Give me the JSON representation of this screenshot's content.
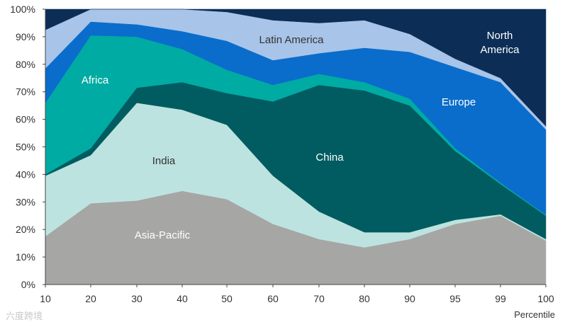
{
  "chart_data": {
    "type": "area",
    "stacked": true,
    "x": [
      10,
      20,
      30,
      40,
      50,
      60,
      70,
      80,
      90,
      95,
      99,
      100
    ],
    "xtick_labels": [
      "10",
      "20",
      "30",
      "40",
      "50",
      "60",
      "70",
      "80",
      "90",
      "95",
      "99",
      "100"
    ],
    "xlabel": "Percentile",
    "ylabel": "",
    "ylim": [
      0,
      100
    ],
    "yticks": [
      0,
      10,
      20,
      30,
      40,
      50,
      60,
      70,
      80,
      90,
      100
    ],
    "ytick_labels": [
      "0%",
      "10%",
      "20%",
      "30%",
      "40%",
      "50%",
      "60%",
      "70%",
      "80%",
      "90%",
      "100%"
    ],
    "series": [
      {
        "name": "Asia-Pacific",
        "color": "#a6a6a5",
        "label_color": "#ffffff",
        "values": [
          17.5,
          29.5,
          30.5,
          34,
          31,
          22,
          16.5,
          13.5,
          16.5,
          22,
          25,
          16
        ]
      },
      {
        "name": "India",
        "color": "#bde3e0",
        "label_color": "#333333",
        "values": [
          22,
          17.5,
          35.5,
          29.5,
          27,
          17.5,
          10,
          5.5,
          2.5,
          1.5,
          0.5,
          0.5
        ]
      },
      {
        "name": "China",
        "color": "#005c60",
        "label_color": "#ffffff",
        "values": [
          0.5,
          2.5,
          5.5,
          10,
          11.5,
          27,
          46,
          51.5,
          46,
          25,
          11,
          8.5
        ]
      },
      {
        "name": "Africa",
        "color": "#00aba3",
        "label_color": "#ffffff",
        "values": [
          26,
          41,
          18.5,
          12,
          8.5,
          6,
          4,
          3,
          2.5,
          1,
          0.5,
          0.3
        ]
      },
      {
        "name": "Europe",
        "color": "#0a6dcb",
        "label_color": "#ffffff",
        "values": [
          12.5,
          5,
          4.5,
          6.5,
          10.5,
          9,
          7.5,
          12.5,
          17,
          29.5,
          36.5,
          31
        ]
      },
      {
        "name": "Latin America",
        "color": "#a8c4e8",
        "label_color": "#333333",
        "values": [
          14,
          4.5,
          5.5,
          8,
          10.5,
          14.5,
          11,
          10,
          6.5,
          3,
          1.5,
          1.2
        ]
      },
      {
        "name": "North America",
        "color": "#0c2e56",
        "label_color": "#ffffff",
        "values": [
          7.5,
          0,
          0,
          0,
          1,
          4,
          5,
          4,
          9,
          18,
          25,
          42.5
        ]
      }
    ],
    "labels": [
      {
        "series": "Africa",
        "text": "Africa"
      },
      {
        "series": "India",
        "text": "India"
      },
      {
        "series": "China",
        "text": "China"
      },
      {
        "series": "Asia-Pacific",
        "text": "Asia-Pacific"
      },
      {
        "series": "Latin America",
        "text": "Latin America"
      },
      {
        "series": "Europe",
        "text": "Europe"
      },
      {
        "series": "North America",
        "text": "North\nAmerica"
      }
    ]
  },
  "watermark": "六度跨境"
}
